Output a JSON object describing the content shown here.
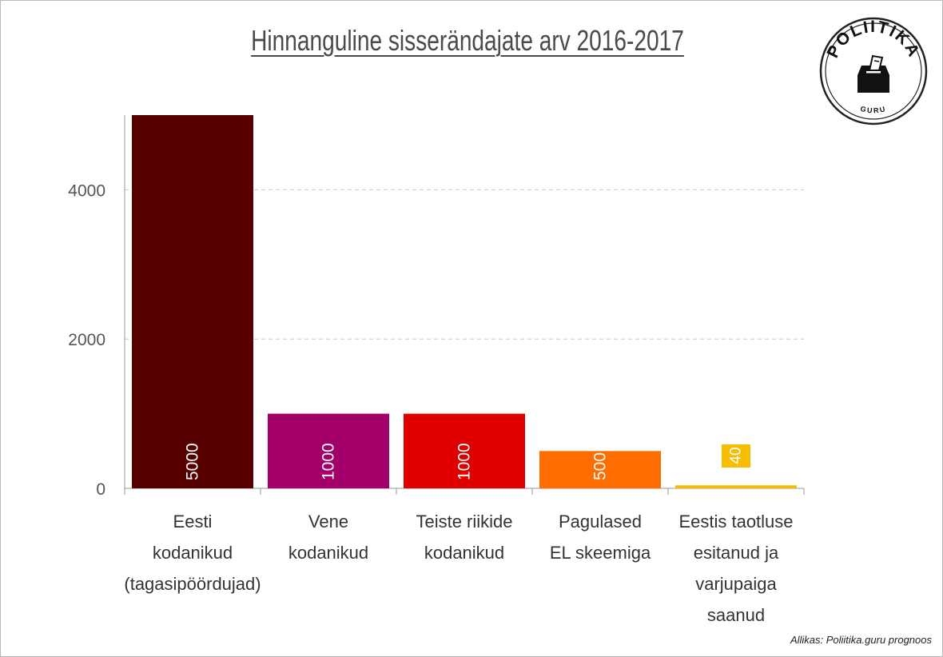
{
  "title": "Hinnanguline sisserändajate arv 2016-2017",
  "source": "Allikas: Poliitika.guru prognoos",
  "logo": {
    "text_top": "POLIITIKA",
    "text_bottom": "GURU",
    "icon": "ballot-box-icon"
  },
  "chart_data": {
    "type": "bar",
    "title": "Hinnanguline sisserändajate arv 2016-2017",
    "xlabel": "",
    "ylabel": "",
    "categories": [
      "Eesti kodanikud (tagasipöördujad)",
      "Vene kodanikud",
      "Teiste riikide kodanikud",
      "Pagulased EL skeemiga",
      "Eestis taotluse esitanud ja varjupaiga saanud"
    ],
    "category_lines": [
      [
        "Eesti",
        "kodanikud",
        "(tagasipöördujad)"
      ],
      [
        "Vene",
        "kodanikud"
      ],
      [
        "Teiste riikide",
        "kodanikud"
      ],
      [
        "Pagulased",
        "EL skeemiga"
      ],
      [
        "Eestis taotluse",
        "esitanud ja",
        "varjupaiga",
        "saanud"
      ]
    ],
    "values": [
      5000,
      1000,
      1000,
      500,
      40
    ],
    "data_labels": [
      "5000",
      "1000",
      "1000",
      "500",
      "40"
    ],
    "colors": [
      "#560000",
      "#a3006a",
      "#e00000",
      "#ff6c00",
      "#f7bd00"
    ],
    "yticks": [
      0,
      2000,
      4000
    ],
    "ylim": [
      0,
      5000
    ],
    "grid": true
  }
}
